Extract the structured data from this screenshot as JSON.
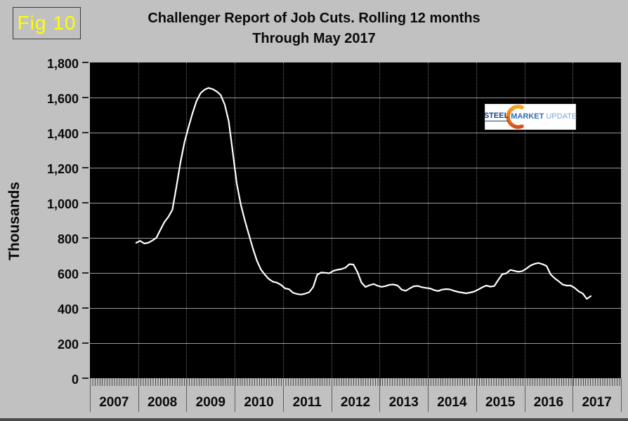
{
  "fig_label": "Fig 10",
  "title": {
    "line1": "Challenger Report of Job Cuts. Rolling 12 months",
    "line2": "Through May 2017"
  },
  "y_axis_title": "Thousands",
  "logo": {
    "part1": "STEEL",
    "part2": "MARKET",
    "part3": "UPDATE"
  },
  "colors": {
    "page_background": "#c1c1c1",
    "plot_background": "#000000",
    "line": "#ffffff",
    "grid_horizontal": "#989898",
    "grid_vertical_dotted": "#6f6f6f",
    "fig_label_text": "#ffff00",
    "title_text": "#0a0a0a",
    "logo_orange": "#e8632a",
    "logo_orange_light": "#f6a623",
    "logo_navy": "#16417c",
    "logo_blue": "#2d6cb5",
    "logo_light_blue": "#7aa7d6"
  },
  "chart_data": {
    "type": "line",
    "title": "Challenger Report of Job Cuts. Rolling 12 months Through May 2017",
    "xlabel": "",
    "ylabel": "Thousands",
    "ylim": [
      0,
      1800
    ],
    "y_tick_step": 200,
    "y_tick_labels": [
      "0",
      "200",
      "400",
      "600",
      "800",
      "1,000",
      "1,200",
      "1,400",
      "1,600",
      "1,800"
    ],
    "x_year_labels": [
      "2007",
      "2008",
      "2009",
      "2010",
      "2011",
      "2012",
      "2013",
      "2014",
      "2015",
      "2016",
      "2017"
    ],
    "x_axis_span_years": [
      2007,
      2018
    ],
    "grid": "on",
    "legend": "none",
    "series": [
      {
        "name": "Job cuts, rolling 12-month total (thousands)",
        "start_month": "2007-12",
        "end_month": "2017-05",
        "frequency": "monthly",
        "monthly_values": [
          772,
          783,
          768,
          772,
          785,
          800,
          845,
          890,
          920,
          960,
          1090,
          1230,
          1345,
          1430,
          1510,
          1580,
          1625,
          1645,
          1655,
          1648,
          1635,
          1615,
          1560,
          1465,
          1290,
          1110,
          990,
          900,
          820,
          740,
          670,
          620,
          590,
          565,
          550,
          545,
          532,
          512,
          507,
          487,
          480,
          477,
          482,
          490,
          520,
          590,
          603,
          601,
          598,
          612,
          618,
          622,
          630,
          650,
          648,
          605,
          545,
          520,
          530,
          537,
          527,
          521,
          525,
          533,
          534,
          528,
          505,
          498,
          512,
          524,
          526,
          519,
          515,
          512,
          503,
          497,
          505,
          508,
          506,
          498,
          492,
          488,
          484,
          488,
          494,
          505,
          518,
          528,
          522,
          525,
          560,
          593,
          598,
          617,
          612,
          607,
          611,
          625,
          642,
          652,
          657,
          650,
          640,
          592,
          570,
          553,
          534,
          528,
          528,
          515,
          495,
          483,
          452,
          468
        ]
      }
    ]
  }
}
